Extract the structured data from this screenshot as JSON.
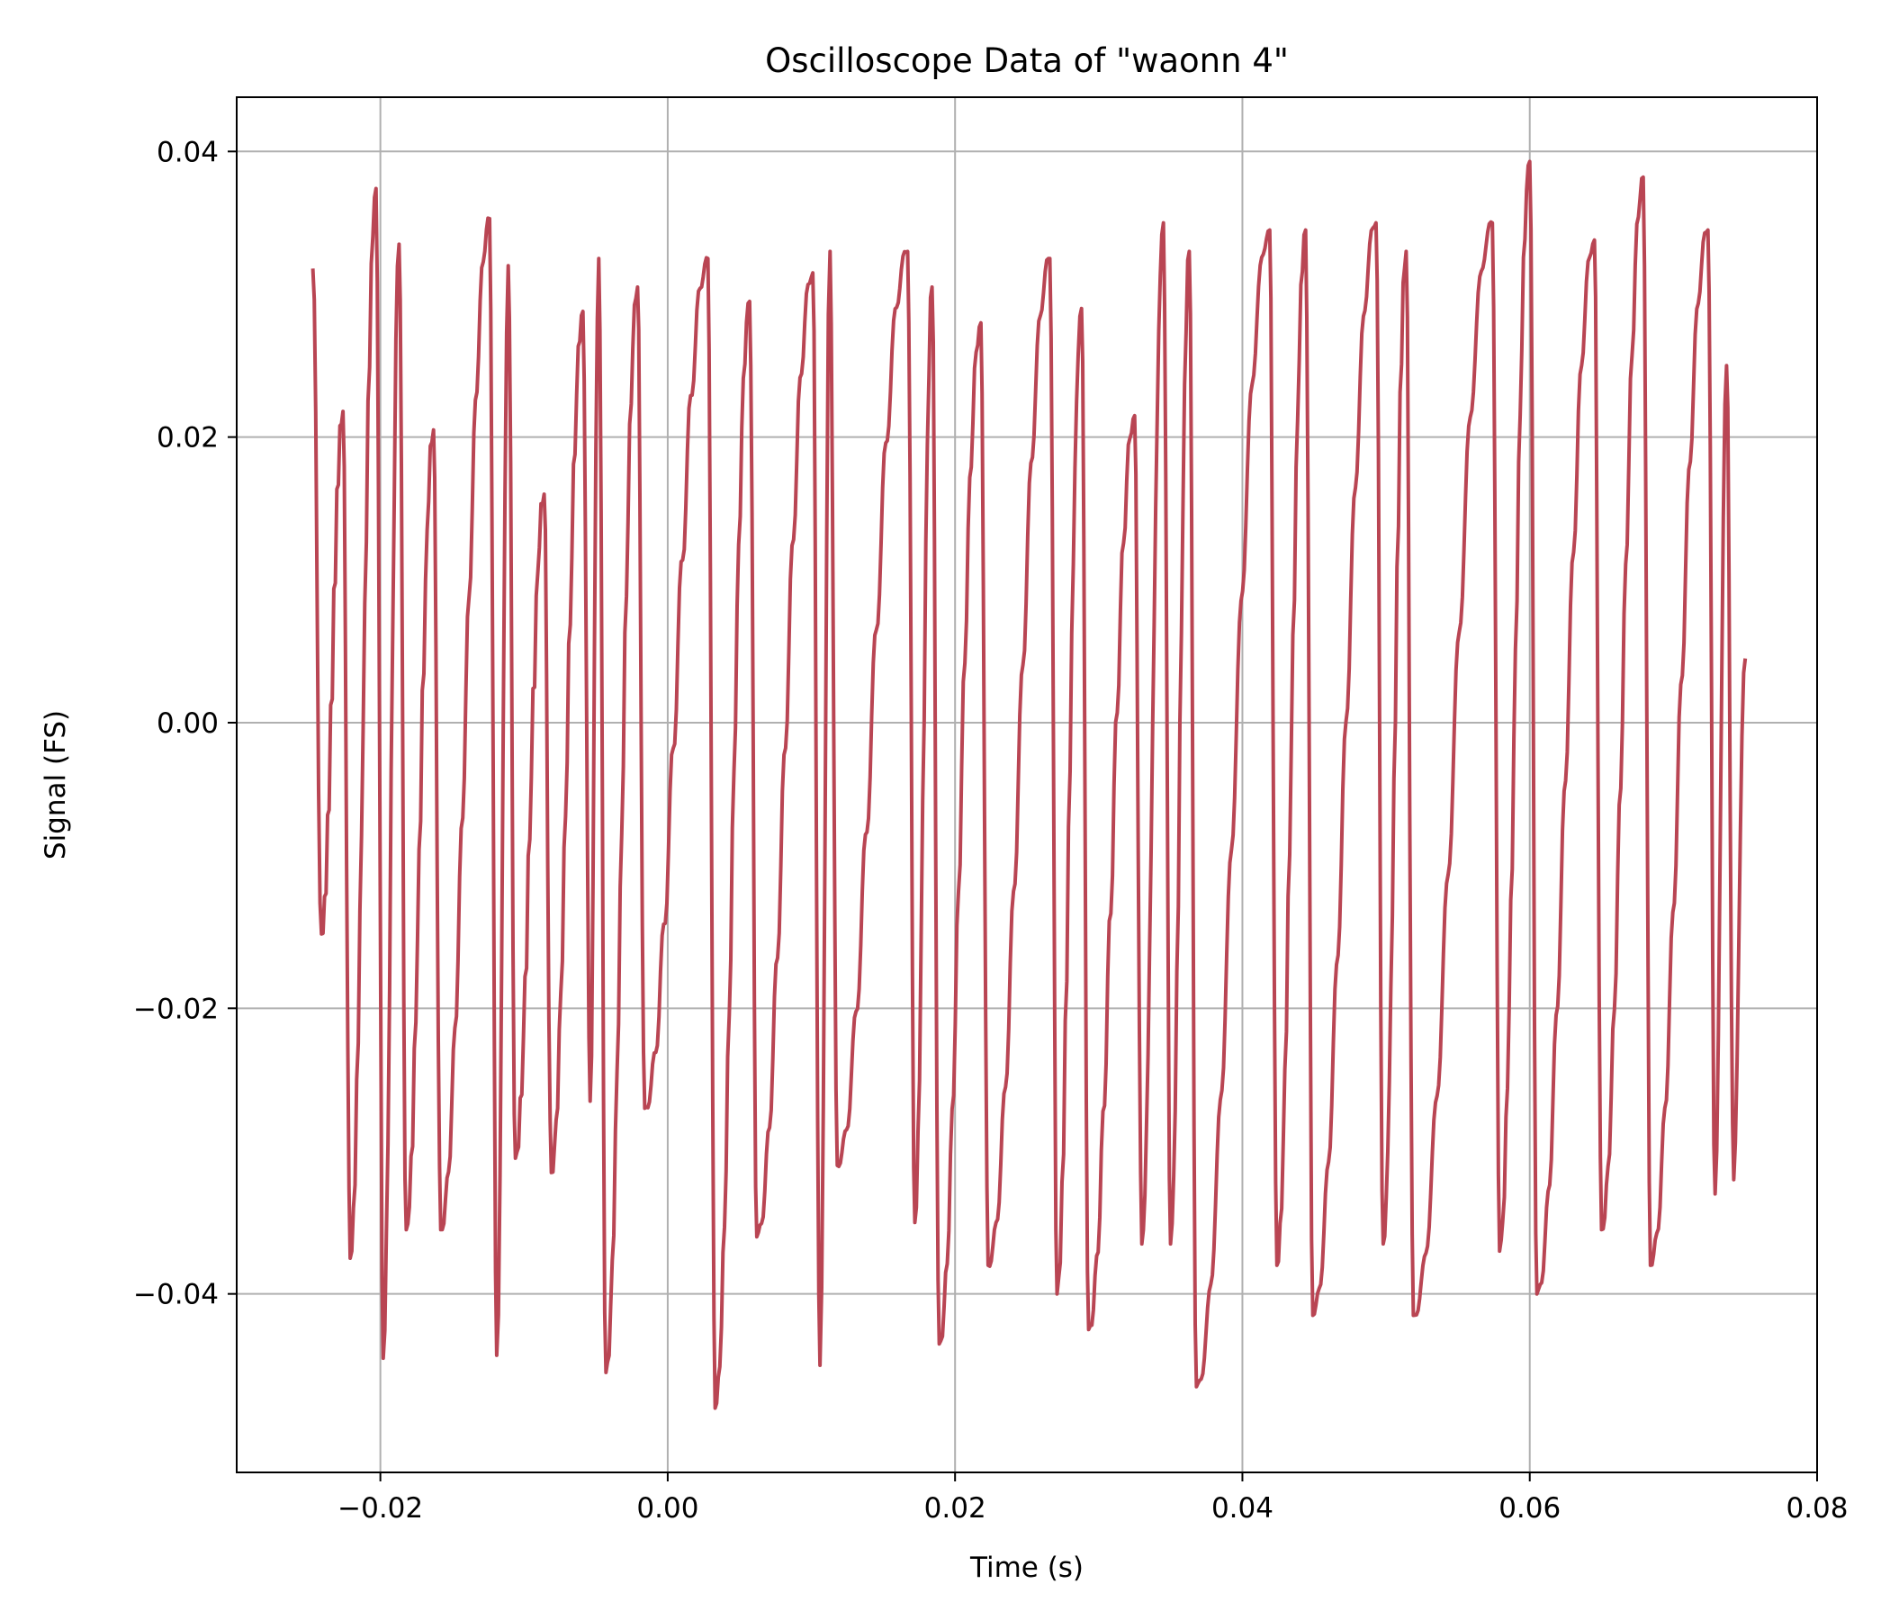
{
  "chart_data": {
    "type": "line",
    "title": "Oscilloscope Data of \"waonn 4\"",
    "xlabel": "Time (s)",
    "ylabel": "Signal (FS)",
    "xlim": [
      -0.03,
      0.08
    ],
    "ylim": [
      -0.0525,
      0.0438
    ],
    "grid": true,
    "legend": "none",
    "color": "#b94553",
    "x_ticks": [
      -0.02,
      0.0,
      0.02,
      0.04,
      0.06,
      0.08
    ],
    "x_tick_labels": [
      "−0.02",
      "0.00",
      "0.02",
      "0.04",
      "0.06",
      "0.08"
    ],
    "y_ticks": [
      0.04,
      0.02,
      0.0,
      -0.02,
      -0.04
    ],
    "y_tick_labels": [
      "0.04",
      "0.02",
      "0.00",
      "−0.02",
      "−0.04"
    ],
    "series": [
      {
        "x_start": -0.025,
        "x_end": 0.075,
        "sample_step": 0.00011,
        "cycle_peaks": [
          [
            -0.0247,
            0.0318
          ],
          [
            -0.0241,
            -0.0148
          ],
          [
            -0.0226,
            0.0218
          ],
          [
            -0.0221,
            -0.0375
          ],
          [
            -0.0203,
            0.0374
          ],
          [
            -0.0198,
            -0.0445
          ],
          [
            -0.0187,
            0.0335
          ],
          [
            -0.0182,
            -0.0355
          ],
          [
            -0.0163,
            0.0205
          ],
          [
            -0.0158,
            -0.0355
          ],
          [
            -0.0124,
            0.0353
          ],
          [
            -0.0119,
            -0.0443
          ],
          [
            -0.0111,
            0.032
          ],
          [
            -0.0106,
            -0.0305
          ],
          [
            -0.0086,
            0.016
          ],
          [
            -0.0081,
            -0.0315
          ],
          [
            -0.0059,
            0.0288
          ],
          [
            -0.0054,
            -0.0265
          ],
          [
            -0.0048,
            0.0325
          ],
          [
            -0.0043,
            -0.0455
          ],
          [
            -0.0021,
            0.0305
          ],
          [
            -0.0016,
            -0.027
          ],
          [
            0.0028,
            0.0325
          ],
          [
            0.0033,
            -0.048
          ],
          [
            0.0057,
            0.0295
          ],
          [
            0.0062,
            -0.036
          ],
          [
            0.0101,
            0.0315
          ],
          [
            0.0106,
            -0.045
          ],
          [
            0.0113,
            0.033
          ],
          [
            0.0118,
            -0.031
          ],
          [
            0.0167,
            0.033
          ],
          [
            0.0172,
            -0.035
          ],
          [
            0.0184,
            0.0305
          ],
          [
            0.0189,
            -0.0435
          ],
          [
            0.0218,
            0.028
          ],
          [
            0.0223,
            -0.038
          ],
          [
            0.0266,
            0.0325
          ],
          [
            0.0271,
            -0.04
          ],
          [
            0.0288,
            0.029
          ],
          [
            0.0293,
            -0.0425
          ],
          [
            0.0325,
            0.0215
          ],
          [
            0.033,
            -0.0365
          ],
          [
            0.0345,
            0.035
          ],
          [
            0.035,
            -0.0365
          ],
          [
            0.0363,
            0.033
          ],
          [
            0.0368,
            -0.0465
          ],
          [
            0.0419,
            0.0345
          ],
          [
            0.0424,
            -0.038
          ],
          [
            0.0444,
            0.0345
          ],
          [
            0.0449,
            -0.0415
          ],
          [
            0.0493,
            0.035
          ],
          [
            0.0498,
            -0.0365
          ],
          [
            0.0514,
            0.033
          ],
          [
            0.0519,
            -0.0415
          ],
          [
            0.0574,
            0.035
          ],
          [
            0.0579,
            -0.037
          ],
          [
            0.06,
            0.0393
          ],
          [
            0.0605,
            -0.04
          ],
          [
            0.0645,
            0.0338
          ],
          [
            0.065,
            -0.0355
          ],
          [
            0.0679,
            0.0382
          ],
          [
            0.0684,
            -0.038
          ],
          [
            0.0724,
            0.0345
          ],
          [
            0.0729,
            -0.033
          ],
          [
            0.0737,
            0.025
          ],
          [
            0.0742,
            -0.032
          ],
          [
            0.075,
            0.0045
          ]
        ]
      }
    ]
  }
}
